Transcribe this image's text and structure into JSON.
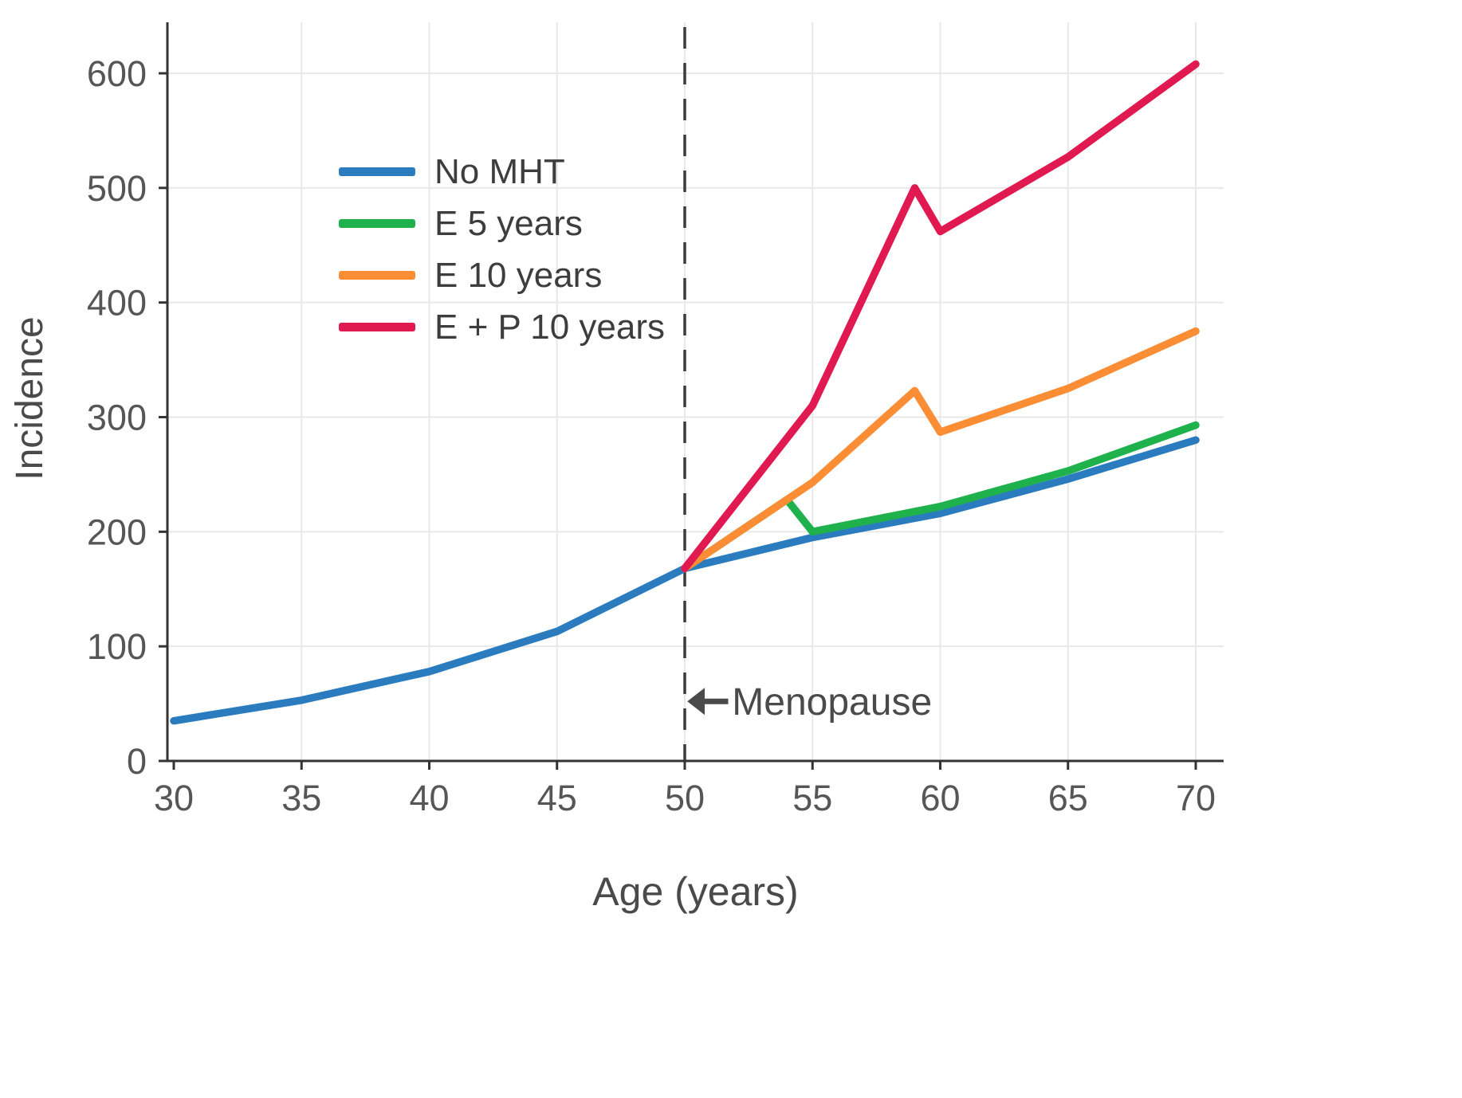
{
  "chart_data": {
    "type": "line",
    "title": "",
    "xlabel": "Age (years)",
    "ylabel": "Incidence",
    "xlim": [
      30,
      70
    ],
    "ylim": [
      0,
      643
    ],
    "xticks": [
      30,
      35,
      40,
      45,
      50,
      55,
      60,
      65,
      70
    ],
    "yticks": [
      0,
      100,
      200,
      300,
      400,
      500,
      600
    ],
    "grid": true,
    "legend_position": "upper-left-inside",
    "annotation": {
      "label": "Menopause",
      "x": 50,
      "text_y": 52
    },
    "series": [
      {
        "name": "No MHT",
        "color": "#2b7cbe",
        "x": [
          30,
          35,
          40,
          45,
          50,
          55,
          60,
          65,
          70
        ],
        "y": [
          35,
          53,
          78,
          113,
          168,
          195,
          216,
          246,
          280
        ]
      },
      {
        "name": "E 5 years",
        "color": "#1fb14c",
        "x": [
          50,
          54,
          55,
          60,
          65,
          70
        ],
        "y": [
          168,
          228,
          200,
          222,
          253,
          293
        ]
      },
      {
        "name": "E 10 years",
        "color": "#fb8d35",
        "x": [
          50,
          55,
          59,
          60,
          65,
          70
        ],
        "y": [
          168,
          243,
          323,
          287,
          325,
          375
        ]
      },
      {
        "name": "E + P 10 years",
        "color": "#e01a51",
        "x": [
          50,
          55,
          59,
          60,
          65,
          70
        ],
        "y": [
          168,
          310,
          500,
          462,
          527,
          608
        ]
      }
    ]
  }
}
